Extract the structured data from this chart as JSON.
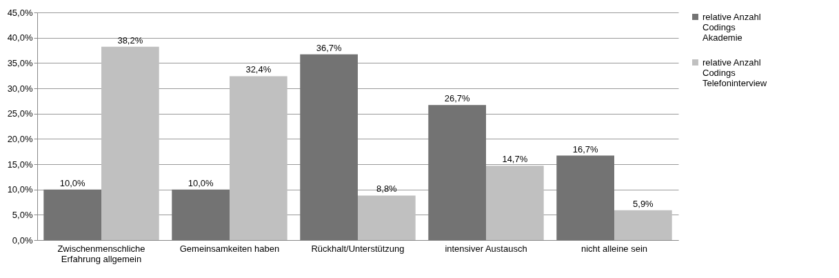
{
  "chart_data": {
    "type": "bar",
    "categories": [
      "Zwischenmenschliche Erfahrung allgemein",
      "Gemeinsamkeiten haben",
      "Rückhalt/Unterstützung",
      "intensiver Austausch",
      "nicht alleine sein"
    ],
    "series": [
      {
        "name": "relative Anzahl Codings Akademie",
        "color": "#737373",
        "values": [
          10.0,
          10.0,
          36.7,
          26.7,
          16.7
        ],
        "value_labels": [
          "10,0%",
          "10,0%",
          "36,7%",
          "26,7%",
          "16,7%"
        ]
      },
      {
        "name": "relative Anzahl Codings Telefoninterview",
        "color": "#c0c0c0",
        "values": [
          38.2,
          32.4,
          8.8,
          14.7,
          5.9
        ],
        "value_labels": [
          "38,2%",
          "32,4%",
          "8,8%",
          "14,7%",
          "5,9%"
        ]
      }
    ],
    "ylim": [
      0,
      45
    ],
    "yticks": [
      {
        "value": 0,
        "label": "0,0%"
      },
      {
        "value": 5,
        "label": "5,0%"
      },
      {
        "value": 10,
        "label": "10,0%"
      },
      {
        "value": 15,
        "label": "15,0%"
      },
      {
        "value": 20,
        "label": "20,0%"
      },
      {
        "value": 25,
        "label": "25,0%"
      },
      {
        "value": 30,
        "label": "30,0%"
      },
      {
        "value": 35,
        "label": "35,0%"
      },
      {
        "value": 40,
        "label": "40,0%"
      },
      {
        "value": 45,
        "label": "45,0%"
      }
    ],
    "grid": "y",
    "legend": "right"
  }
}
